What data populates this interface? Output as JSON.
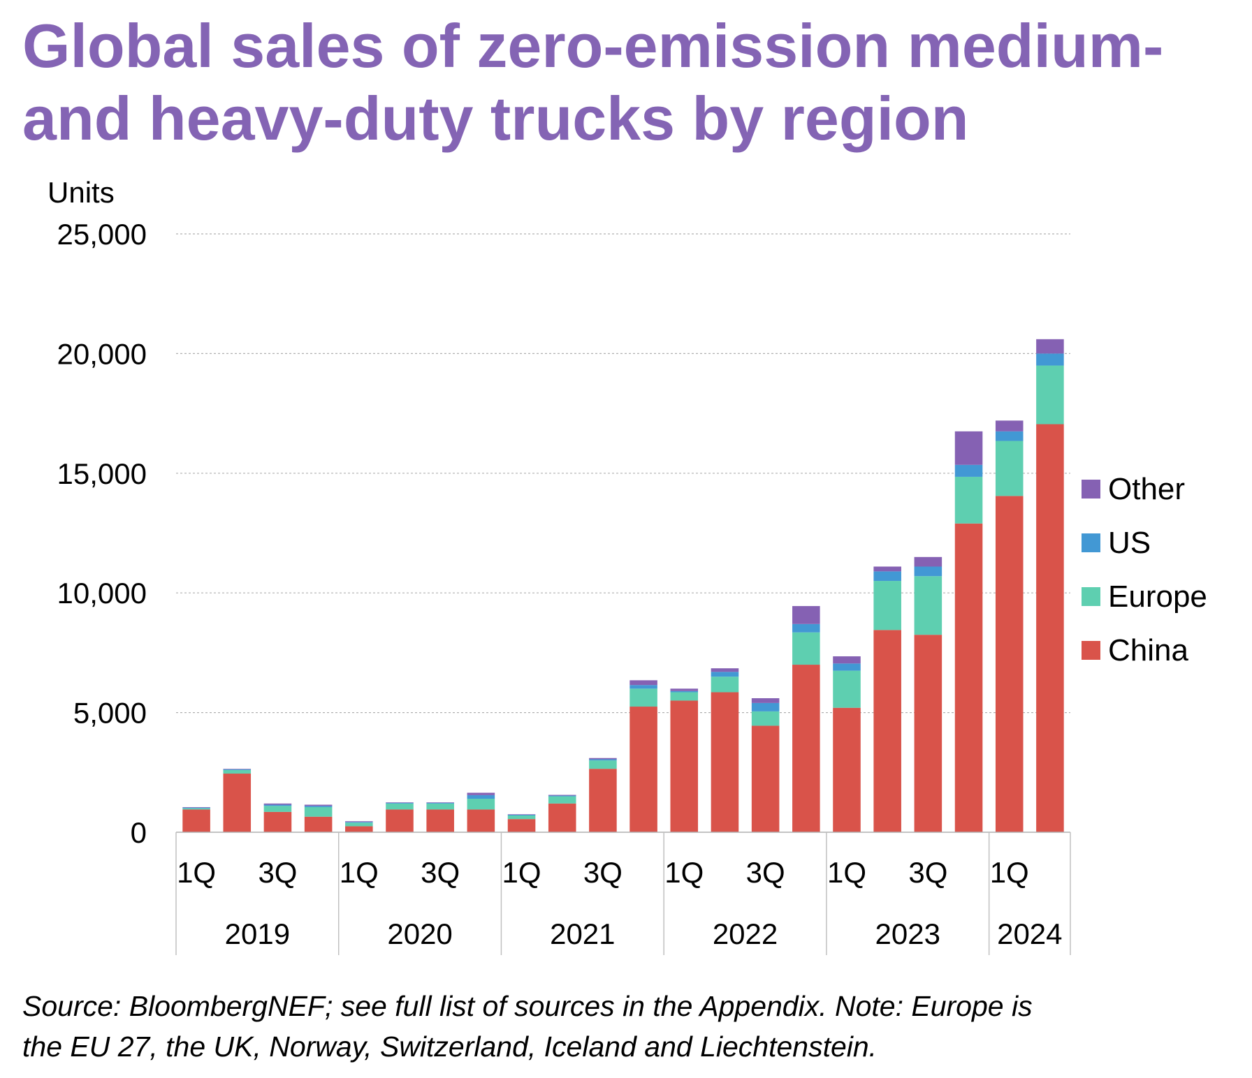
{
  "title": {
    "line1": "Global sales of zero-emission medium-",
    "line2": "and heavy-duty trucks by region"
  },
  "source": {
    "line1": "Source: BloombergNEF; see full list of sources in the Appendix. Note: Europe is",
    "line2": "the EU 27, the UK, Norway, Switzerland, Iceland and Liechtenstein."
  },
  "chart_data": {
    "type": "bar",
    "stacked": true,
    "ylabel": "Units",
    "ylim": [
      0,
      25000
    ],
    "yticks": [
      0,
      5000,
      10000,
      15000,
      20000,
      25000
    ],
    "ytick_labels": [
      "0",
      "5,000",
      "10,000",
      "15,000",
      "20,000",
      "25,000"
    ],
    "grid": true,
    "legend_position": "right",
    "categories": [
      "1Q 2019",
      "2Q 2019",
      "3Q 2019",
      "4Q 2019",
      "1Q 2020",
      "2Q 2020",
      "3Q 2020",
      "4Q 2020",
      "1Q 2021",
      "2Q 2021",
      "3Q 2021",
      "4Q 2021",
      "1Q 2022",
      "2Q 2022",
      "3Q 2022",
      "4Q 2022",
      "1Q 2023",
      "2Q 2023",
      "3Q 2023",
      "4Q 2023",
      "1Q 2024",
      "2Q 2024"
    ],
    "quarter_labels": [
      "1Q",
      "",
      "3Q",
      "",
      "1Q",
      "",
      "3Q",
      "",
      "1Q",
      "",
      "3Q",
      "",
      "1Q",
      "",
      "3Q",
      "",
      "1Q",
      "",
      "3Q",
      "",
      "1Q",
      ""
    ],
    "year_groups": [
      {
        "label": "2019",
        "count": 4
      },
      {
        "label": "2020",
        "count": 4
      },
      {
        "label": "2021",
        "count": 4
      },
      {
        "label": "2022",
        "count": 4
      },
      {
        "label": "2023",
        "count": 4
      },
      {
        "label": "2024",
        "count": 2
      }
    ],
    "series": [
      {
        "name": "China",
        "color": "#d9534a",
        "values": [
          950,
          2450,
          850,
          650,
          250,
          950,
          950,
          950,
          550,
          1200,
          2650,
          5250,
          5500,
          5850,
          4450,
          7000,
          5200,
          8450,
          8250,
          12900,
          14050,
          17050
        ]
      },
      {
        "name": "Europe",
        "color": "#5ecfb0",
        "values": [
          50,
          150,
          250,
          400,
          150,
          250,
          250,
          450,
          150,
          300,
          350,
          750,
          350,
          650,
          600,
          1350,
          1550,
          2050,
          2450,
          1950,
          2300,
          2450
        ]
      },
      {
        "name": "US",
        "color": "#4298d4",
        "values": [
          30,
          30,
          50,
          50,
          30,
          30,
          30,
          150,
          30,
          30,
          50,
          150,
          50,
          200,
          350,
          350,
          300,
          400,
          400,
          500,
          400,
          500
        ]
      },
      {
        "name": "Other",
        "color": "#8561b3",
        "values": [
          20,
          20,
          50,
          50,
          30,
          20,
          20,
          100,
          20,
          30,
          50,
          200,
          100,
          150,
          200,
          750,
          300,
          200,
          400,
          1400,
          450,
          600
        ]
      }
    ],
    "legend_order": [
      "Other",
      "US",
      "Europe",
      "China"
    ]
  }
}
